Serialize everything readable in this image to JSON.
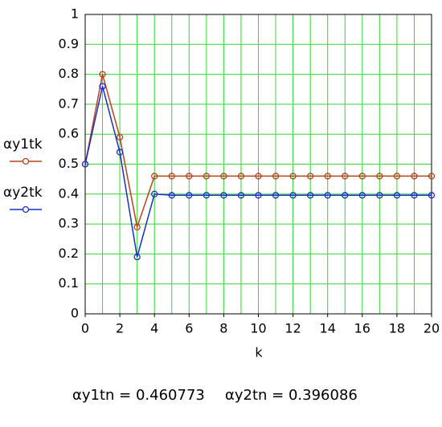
{
  "chart_data": {
    "type": "line",
    "x": [
      0,
      1,
      2,
      3,
      4,
      5,
      6,
      7,
      8,
      9,
      10,
      11,
      12,
      13,
      14,
      15,
      16,
      17,
      18,
      19,
      20
    ],
    "series": [
      {
        "name": "αy1tk",
        "color": "#b5441d",
        "values": [
          0.5,
          0.8,
          0.59,
          0.29,
          0.46,
          0.46,
          0.46,
          0.46,
          0.46,
          0.46,
          0.46,
          0.46,
          0.46,
          0.46,
          0.46,
          0.46,
          0.46,
          0.46,
          0.46,
          0.46,
          0.46
        ]
      },
      {
        "name": "αy2tk",
        "color": "#1a2fc4",
        "values": [
          0.5,
          0.76,
          0.54,
          0.19,
          0.4,
          0.396,
          0.396,
          0.396,
          0.396,
          0.396,
          0.396,
          0.396,
          0.396,
          0.396,
          0.396,
          0.396,
          0.396,
          0.396,
          0.396,
          0.396,
          0.396
        ]
      }
    ],
    "xlabel": "k",
    "xlim": [
      0,
      20
    ],
    "xticks": [
      0,
      2,
      4,
      6,
      8,
      10,
      12,
      14,
      16,
      18,
      20
    ],
    "ylim": [
      0,
      1
    ],
    "yticks": [
      0,
      0.1,
      0.2,
      0.3,
      0.4,
      0.5,
      0.6,
      0.7,
      0.8,
      0.9,
      1
    ],
    "grid": true,
    "grid_color": "#33d633",
    "footer": [
      "αy1tn = 0.460773",
      "αy2tn = 0.396086"
    ]
  }
}
